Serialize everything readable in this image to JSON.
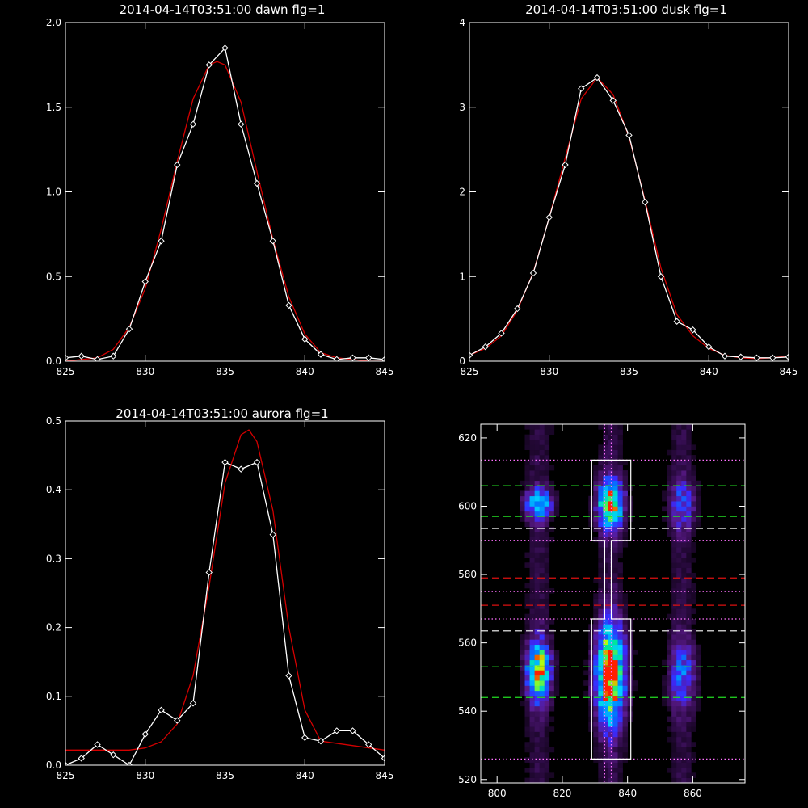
{
  "chart_data": [
    {
      "type": "line",
      "title": "2014-04-14T03:51:00 dawn flg=1",
      "xlim": [
        825,
        845
      ],
      "ylim": [
        0,
        2.0
      ],
      "xticks": [
        825,
        830,
        835,
        840,
        845
      ],
      "yticks": [
        0.0,
        0.5,
        1.0,
        1.5,
        2.0
      ],
      "xtick_labels": [
        "825",
        "830",
        "835",
        "840",
        "845"
      ],
      "ytick_labels": [
        "0.0",
        "0.5",
        "1.0",
        "1.5",
        "2.0"
      ],
      "series": [
        {
          "marker": "diamond",
          "color": "#ffffff",
          "x": [
            825,
            826,
            827,
            828,
            829,
            830,
            831,
            832,
            833,
            834,
            835,
            836,
            837,
            838,
            839,
            840,
            841,
            842,
            843,
            844,
            845
          ],
          "y": [
            0.02,
            0.03,
            0.01,
            0.03,
            0.19,
            0.47,
            0.71,
            1.16,
            1.4,
            1.75,
            1.85,
            1.4,
            1.05,
            0.71,
            0.33,
            0.13,
            0.04,
            0.01,
            0.02,
            0.02,
            0.01
          ]
        },
        {
          "marker": "none",
          "color": "#d40000",
          "x": [
            825,
            826,
            827,
            828,
            829,
            830,
            831,
            832,
            833,
            834,
            834.5,
            835,
            836,
            837,
            838,
            839,
            840,
            841,
            842,
            843,
            844,
            845
          ],
          "y": [
            0.0,
            0.01,
            0.02,
            0.07,
            0.2,
            0.43,
            0.78,
            1.18,
            1.55,
            1.75,
            1.77,
            1.75,
            1.53,
            1.12,
            0.72,
            0.38,
            0.16,
            0.05,
            0.02,
            0.01,
            0.0,
            0.0
          ]
        }
      ]
    },
    {
      "type": "line",
      "title": "2014-04-14T03:51:00 dusk flg=1",
      "xlim": [
        825,
        845
      ],
      "ylim": [
        0,
        4
      ],
      "xticks": [
        825,
        830,
        835,
        840,
        845
      ],
      "yticks": [
        0,
        1,
        2,
        3,
        4
      ],
      "xtick_labels": [
        "825",
        "830",
        "835",
        "840",
        "845"
      ],
      "ytick_labels": [
        "0",
        "1",
        "2",
        "3",
        "4"
      ],
      "series": [
        {
          "marker": "diamond",
          "color": "#ffffff",
          "x": [
            825,
            826,
            827,
            828,
            829,
            830,
            831,
            832,
            833,
            834,
            835,
            836,
            837,
            838,
            839,
            840,
            841,
            842,
            843,
            844,
            845
          ],
          "y": [
            0.07,
            0.17,
            0.33,
            0.62,
            1.04,
            1.7,
            2.32,
            3.22,
            3.35,
            3.08,
            2.67,
            1.88,
            1.0,
            0.47,
            0.37,
            0.17,
            0.06,
            0.05,
            0.04,
            0.04,
            0.05
          ]
        },
        {
          "marker": "none",
          "color": "#d40000",
          "x": [
            825,
            826,
            827,
            828,
            829,
            830,
            831,
            832,
            833,
            834,
            835,
            836,
            837,
            838,
            839,
            840,
            841,
            842,
            843,
            844,
            845
          ],
          "y": [
            0.07,
            0.15,
            0.3,
            0.6,
            1.05,
            1.7,
            2.4,
            3.1,
            3.35,
            3.15,
            2.65,
            1.9,
            1.1,
            0.55,
            0.3,
            0.15,
            0.07,
            0.04,
            0.03,
            0.04,
            0.06
          ]
        }
      ]
    },
    {
      "type": "line",
      "title": "2014-04-14T03:51:00 aurora flg=1",
      "xlim": [
        825,
        845
      ],
      "ylim": [
        0,
        0.5
      ],
      "xticks": [
        825,
        830,
        835,
        840,
        845
      ],
      "yticks": [
        0.0,
        0.1,
        0.2,
        0.3,
        0.4,
        0.5
      ],
      "xtick_labels": [
        "825",
        "830",
        "835",
        "840",
        "845"
      ],
      "ytick_labels": [
        "0.0",
        "0.1",
        "0.2",
        "0.3",
        "0.4",
        "0.5"
      ],
      "series": [
        {
          "marker": "diamond",
          "color": "#ffffff",
          "x": [
            825,
            826,
            827,
            828,
            829,
            830,
            831,
            832,
            833,
            834,
            835,
            836,
            837,
            838,
            839,
            840,
            841,
            842,
            843,
            844,
            845
          ],
          "y": [
            0.0,
            0.01,
            0.03,
            0.015,
            0.0,
            0.045,
            0.08,
            0.065,
            0.09,
            0.28,
            0.44,
            0.43,
            0.44,
            0.335,
            0.13,
            0.04,
            0.035,
            0.05,
            0.05,
            0.03,
            0.01
          ]
        },
        {
          "marker": "none",
          "color": "#d40000",
          "x": [
            825,
            829,
            830,
            831,
            832,
            833,
            834,
            835,
            836,
            836.5,
            837,
            838,
            839,
            840,
            841,
            845
          ],
          "y": [
            0.022,
            0.022,
            0.025,
            0.034,
            0.06,
            0.13,
            0.26,
            0.41,
            0.48,
            0.487,
            0.47,
            0.37,
            0.2,
            0.08,
            0.035,
            0.022
          ]
        }
      ]
    },
    {
      "type": "heatmap",
      "title": "",
      "xlim": [
        795,
        876
      ],
      "ylim": [
        519,
        624
      ],
      "xticks": [
        800,
        820,
        840,
        860
      ],
      "yticks": [
        520,
        540,
        560,
        580,
        600,
        620
      ],
      "xtick_labels": [
        "800",
        "820",
        "840",
        "860"
      ],
      "ytick_labels": [
        "520",
        "540",
        "560",
        "580",
        "600",
        "620"
      ],
      "colormap": [
        "#000000",
        "#2a0a40",
        "#5a1a8a",
        "#3a2aff",
        "#0078ff",
        "#00d0ff",
        "#00e890",
        "#c8ff00",
        "#ff2000"
      ],
      "blobs": [
        {
          "x": 812,
          "y": 600,
          "sx": 3,
          "sy": 3,
          "amp": 0.55
        },
        {
          "x": 812,
          "y": 551,
          "sx": 2.6,
          "sy": 6,
          "amp": 0.78
        },
        {
          "x": 834,
          "y": 600,
          "sx": 2.8,
          "sy": 5,
          "amp": 0.8
        },
        {
          "x": 834,
          "y": 550,
          "sx": 3.2,
          "sy": 10,
          "amp": 1.0
        },
        {
          "x": 856,
          "y": 600,
          "sx": 3,
          "sy": 5,
          "amp": 0.3
        },
        {
          "x": 856,
          "y": 550,
          "sx": 3,
          "sy": 7,
          "amp": 0.32
        }
      ],
      "band_columns": [
        812,
        834,
        856
      ],
      "hlines": [
        {
          "y": 613.5,
          "style": "dotted",
          "color": "#ff70ff"
        },
        {
          "y": 606,
          "style": "dashed",
          "color": "#22dd22"
        },
        {
          "y": 597,
          "style": "dashed",
          "color": "#22dd22"
        },
        {
          "y": 593.5,
          "style": "dashed",
          "color": "#ffffff"
        },
        {
          "y": 590,
          "style": "dotted",
          "color": "#ff70ff"
        },
        {
          "y": 579,
          "style": "dashed",
          "color": "#dd1111"
        },
        {
          "y": 575,
          "style": "dotted",
          "color": "#ff70ff"
        },
        {
          "y": 571,
          "style": "dashed",
          "color": "#dd1111"
        },
        {
          "y": 567,
          "style": "dotted",
          "color": "#ff70ff"
        },
        {
          "y": 563.5,
          "style": "dashed",
          "color": "#ffffff"
        },
        {
          "y": 553,
          "style": "dashed",
          "color": "#22dd22"
        },
        {
          "y": 544,
          "style": "dashed",
          "color": "#22dd22"
        },
        {
          "y": 526,
          "style": "dotted",
          "color": "#ff70ff"
        }
      ],
      "vlines": [
        {
          "x": 833,
          "style": "dotted",
          "color": "#ff70ff"
        },
        {
          "x": 835,
          "style": "dotted",
          "color": "#ff70ff"
        }
      ],
      "outline": [
        [
          829,
          613.5
        ],
        [
          841,
          613.5
        ],
        [
          841,
          590
        ],
        [
          835,
          590
        ],
        [
          835,
          567
        ],
        [
          841,
          567
        ],
        [
          841,
          526
        ],
        [
          829,
          526
        ],
        [
          829,
          567
        ],
        [
          833,
          567
        ],
        [
          833,
          590
        ],
        [
          829,
          590
        ]
      ],
      "outline_color": "#ffffff"
    }
  ]
}
